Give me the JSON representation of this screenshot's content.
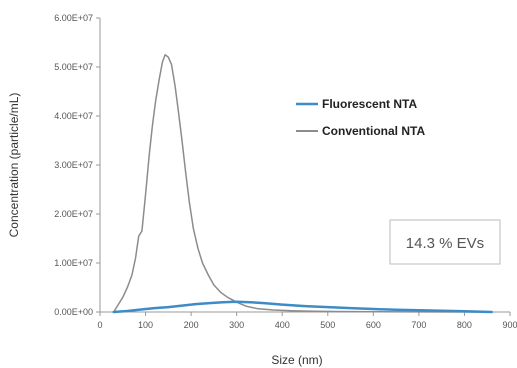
{
  "chart_data": {
    "type": "line",
    "xlabel": "Size (nm)",
    "ylabel": "Concentration (particle/mL)",
    "xlim": [
      0,
      900
    ],
    "ylim": [
      0,
      60000000
    ],
    "x_ticks": [
      "0",
      "100",
      "200",
      "300",
      "400",
      "500",
      "600",
      "700",
      "800",
      "900"
    ],
    "y_ticks": [
      "0.00E+00",
      "1.00E+07",
      "2.00E+07",
      "3.00E+07",
      "4.00E+07",
      "5.00E+07",
      "6.00E+07"
    ],
    "legend_position": "upper-right",
    "annotation": "14.3 % EVs",
    "series": [
      {
        "name": "Fluorescent NTA",
        "color": "#3d8bc7",
        "points": [
          [
            30,
            0
          ],
          [
            60,
            200000
          ],
          [
            90,
            500000
          ],
          [
            120,
            800000
          ],
          [
            150,
            1000000
          ],
          [
            180,
            1300000
          ],
          [
            210,
            1600000
          ],
          [
            240,
            1800000
          ],
          [
            270,
            2000000
          ],
          [
            300,
            2100000
          ],
          [
            330,
            2000000
          ],
          [
            360,
            1800000
          ],
          [
            400,
            1500000
          ],
          [
            450,
            1200000
          ],
          [
            500,
            1000000
          ],
          [
            550,
            800000
          ],
          [
            600,
            600000
          ],
          [
            650,
            450000
          ],
          [
            700,
            350000
          ],
          [
            750,
            250000
          ],
          [
            800,
            150000
          ],
          [
            860,
            0
          ]
        ]
      },
      {
        "name": "Conventional NTA",
        "color": "#8c8c8c",
        "points": [
          [
            30,
            0
          ],
          [
            40,
            1500000
          ],
          [
            50,
            3000000
          ],
          [
            60,
            5000000
          ],
          [
            70,
            7500000
          ],
          [
            78,
            11000000
          ],
          [
            85,
            15500000
          ],
          [
            92,
            16500000
          ],
          [
            100,
            24000000
          ],
          [
            108,
            32000000
          ],
          [
            115,
            38000000
          ],
          [
            122,
            43000000
          ],
          [
            130,
            47500000
          ],
          [
            137,
            51000000
          ],
          [
            143,
            52500000
          ],
          [
            150,
            52000000
          ],
          [
            157,
            50500000
          ],
          [
            165,
            46000000
          ],
          [
            172,
            41000000
          ],
          [
            180,
            35000000
          ],
          [
            188,
            28500000
          ],
          [
            196,
            22500000
          ],
          [
            205,
            17000000
          ],
          [
            215,
            13000000
          ],
          [
            225,
            10000000
          ],
          [
            238,
            7500000
          ],
          [
            250,
            5500000
          ],
          [
            265,
            4000000
          ],
          [
            280,
            3000000
          ],
          [
            300,
            2000000
          ],
          [
            320,
            1200000
          ],
          [
            345,
            700000
          ],
          [
            380,
            400000
          ],
          [
            420,
            250000
          ],
          [
            470,
            150000
          ],
          [
            520,
            100000
          ],
          [
            600,
            60000
          ],
          [
            700,
            30000
          ],
          [
            800,
            10000
          ],
          [
            860,
            0
          ]
        ]
      }
    ]
  }
}
